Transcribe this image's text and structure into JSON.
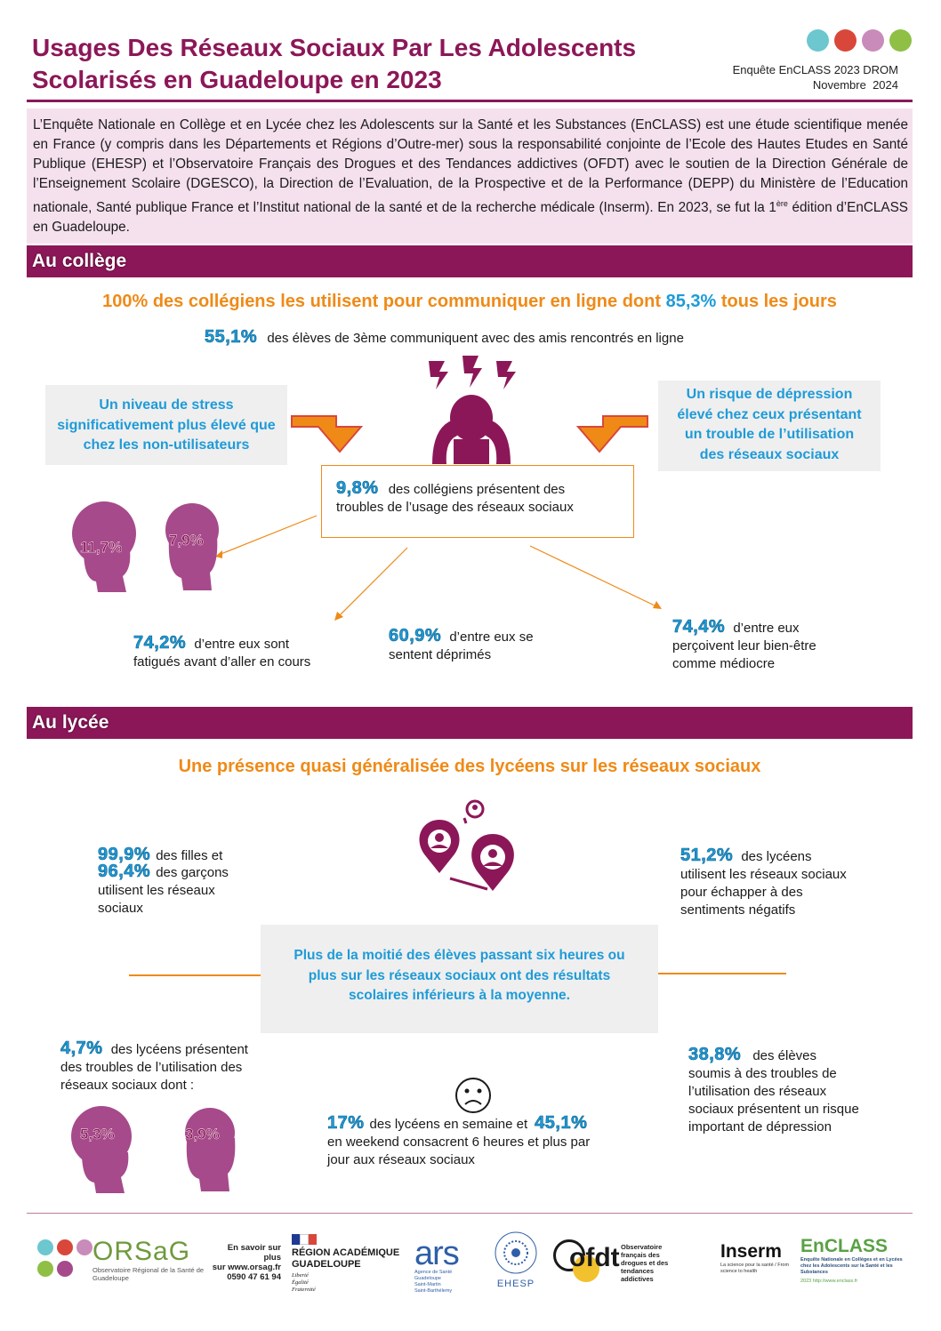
{
  "header": {
    "title_line1": "Usages Des Réseaux Sociaux Par Les Adolescents",
    "title_line2": "Scolarisés en Guadeloupe en 2023",
    "survey": "Enquête EnCLASS 2023 DROM",
    "date": "Novembre  2024",
    "dot_colors": [
      "#6cc7cf",
      "#d9473a",
      "#c98bb9",
      "#8fbf45"
    ]
  },
  "intro": {
    "text_main": "L’Enquête Nationale en Collège et en Lycée chez les Adolescents sur la Santé et les Substances (EnCLASS) est une étude scientifique menée en France (y compris dans les Départements et Régions d’Outre-mer) sous la responsabilité conjointe de l’Ecole des Hautes Etudes en Santé Publique (EHESP) et l’Observatoire Français des Drogues et des Tendances addictives (OFDT) avec le soutien de la Direction Générale de l’Enseignement Scolaire (DGESCO), la Direction de l’Evaluation, de la Prospective et de la Performance (DEPP) du Ministère de l’Education nationale, Santé publique France et l’Institut national de la santé et de la recherche médicale (Inserm). En 2023, se fut la 1",
    "sup": "ère",
    "text_end": " édition d’EnCLASS en Guadeloupe."
  },
  "college": {
    "bar_label": "Au collège",
    "headline_a": "100% des collégiens les utilisent pour communiquer en ligne dont ",
    "headline_pct": "85,3%",
    "headline_b": " tous les jours",
    "stat_online_pct": "55,1%",
    "stat_online_text": "des élèves de 3ème communiquent avec des amis rencontrés en ligne",
    "stress_box": "Un niveau de stress significativement plus élevé que chez les non-utilisateurs",
    "depression_box": "Un risque de dépression élevé chez ceux présentant un trouble de l’utilisation des réseaux sociaux",
    "trouble_pct": "9,8%",
    "trouble_text_a": "des collégiens présentent des",
    "trouble_text_b": "troubles de l’usage des réseaux sociaux",
    "girls_pct": "11,7%",
    "boys_pct": "7,9%",
    "tired_pct": "74,2%",
    "tired_text_a": "d’entre eux sont",
    "tired_text_b": "fatigués avant d’aller en cours",
    "depressed_pct": "60,9%",
    "depressed_text_a": "d’entre eux se",
    "depressed_text_b": "sentent déprimés",
    "wellbeing_pct": "74,4%",
    "wellbeing_text_a": "d’entre eux",
    "wellbeing_text_b": "perçoivent leur bien-être",
    "wellbeing_text_c": "comme médiocre"
  },
  "lycee": {
    "bar_label": "Au lycée",
    "headline": "Une présence quasi généralisée des lycéens sur les réseaux sociaux",
    "girls_use_pct": "99,9%",
    "girls_use_text": "des filles et",
    "boys_use_pct": "96,4%",
    "boys_use_text": "des garçons",
    "use_text_a": "utilisent les réseaux",
    "use_text_b": "sociaux",
    "escape_pct": "51,2%",
    "escape_text_a": "des lycéens",
    "escape_text_b": "utilisent les réseaux sociaux",
    "escape_text_c": "pour échapper à des",
    "escape_text_d": "sentiments négatifs",
    "center_box": "Plus de la moitié des élèves passant six heures ou plus sur les réseaux sociaux ont des résultats scolaires inférieurs à la moyenne.",
    "trouble_pct": "4,7%",
    "trouble_text_a": "des lycéens présentent",
    "trouble_text_b": "des troubles de l’utilisation des",
    "trouble_text_c": "réseaux sociaux dont :",
    "girls_pct": "5,3%",
    "boys_pct": "3,9%",
    "week_pct": "17%",
    "week_text": "des lycéens en semaine et",
    "weekend_pct": "45,1%",
    "weekend_text_a": "en weekend consacrent 6 heures et plus par",
    "weekend_text_b": "jour aux réseaux sociaux",
    "risk_pct": "38,8%",
    "risk_text_a": "des élèves",
    "risk_text_b": "soumis à des troubles de",
    "risk_text_c": "l’utilisation des réseaux",
    "risk_text_d": "sociaux présentent un risque",
    "risk_text_e": "important de dépression"
  },
  "footer": {
    "orsag_name": "ORSaG",
    "orsag_sub": "Observatoire Régional de la Santé de Guadeloupe",
    "more_a": "En savoir sur plus",
    "more_b": "sur www.orsag.fr",
    "phone": "0590 47 61 94",
    "region_a": "RÉGION ACADÉMIQUE",
    "region_b": "GUADELOUPE",
    "motto_a": "Liberté",
    "motto_b": "Égalité",
    "motto_c": "Fraternité",
    "ars": "ars",
    "ars_sub": "Agence de Santé Guadeloupe Saint-Martin Saint-Barthélemy",
    "ehesp": "EHESP",
    "ofdt": "ofdt",
    "ofdt_sub": "Observatoire français des drogues et des tendances addictives",
    "inserm": "Inserm",
    "inserm_sub": "La science pour la santé / From science to health",
    "enclass": "EnCLASS",
    "enclass_sub": "Enquête Nationale en Collèges et en Lycées chez les Adolescents sur la Santé et les Substances",
    "enclass_year": "2023 http://www.enclass.fr"
  }
}
